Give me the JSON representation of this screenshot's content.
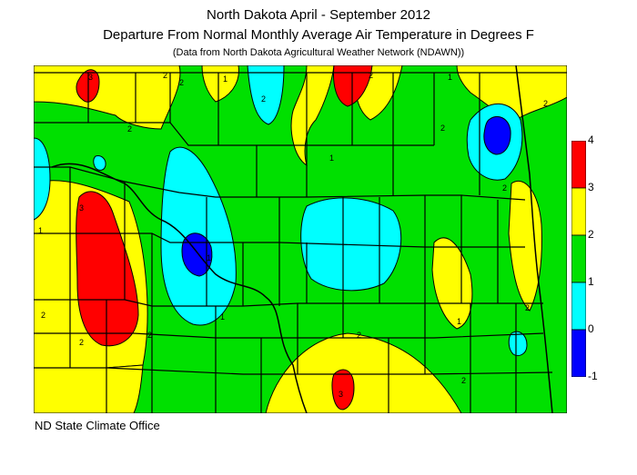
{
  "title_line1": "North Dakota April - September  2012",
  "title_line2": "Departure From Normal Monthly Average Air Temperature in Degrees F",
  "title_line3": "(Data from North Dakota Agricultural Weather Network (NDAWN))",
  "credit": "ND State Climate Office",
  "legend": {
    "ticks": [
      "4",
      "3",
      "2",
      "1",
      "0",
      "-1"
    ],
    "colors": [
      "#ff0000",
      "#ffff00",
      "#00e000",
      "#00ffff",
      "#0000ff"
    ],
    "bands": [
      "3 to 4",
      "2 to 3",
      "1 to 2",
      "0 to 1",
      "-1 to 0"
    ]
  },
  "map": {
    "background_color": "#00e000",
    "contour_labels": [
      "3",
      "2",
      "1",
      "2",
      "2",
      "2",
      "1",
      "2",
      "2",
      "1",
      "1",
      "3",
      "1",
      "2",
      "2",
      "2",
      "2",
      "1",
      "2",
      "3",
      "2",
      "1",
      "2",
      "2"
    ]
  }
}
